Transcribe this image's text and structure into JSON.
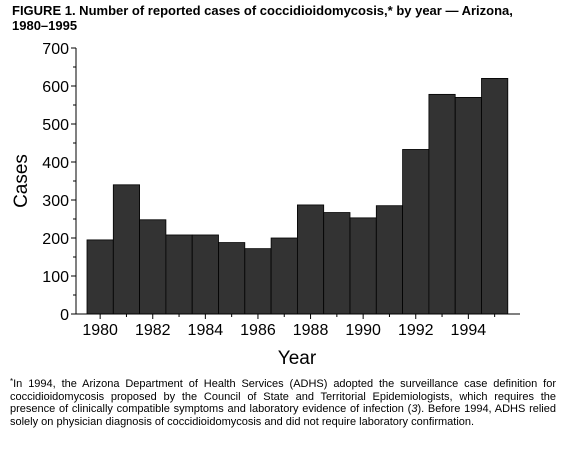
{
  "figure": {
    "title_line1": "FIGURE 1. Number of reported cases of coccidioidomycosis,* by year — Arizona,",
    "title_line2": "1980–1995"
  },
  "chart_data": {
    "type": "bar",
    "title": "",
    "xlabel": "Year",
    "ylabel": "Cases",
    "ylim": [
      0,
      700
    ],
    "yticks": [
      0,
      100,
      200,
      300,
      400,
      500,
      600,
      700
    ],
    "xtick_labels": [
      "1980",
      "1982",
      "1984",
      "1986",
      "1988",
      "1990",
      "1992",
      "1994"
    ],
    "categories": [
      "1980",
      "1981",
      "1982",
      "1983",
      "1984",
      "1985",
      "1986",
      "1987",
      "1988",
      "1989",
      "1990",
      "1991",
      "1992",
      "1993",
      "1994",
      "1995"
    ],
    "values": [
      195,
      340,
      248,
      208,
      208,
      188,
      172,
      200,
      287,
      267,
      253,
      285,
      433,
      578,
      570,
      620
    ],
    "bar_color": "#333333",
    "grid": false
  },
  "footnote": {
    "marker": "*",
    "text_part1": "In 1994, the Arizona Department of Health Services (ADHS) adopted the surveillance case definition for coccidioidomycosis proposed by the Council of State and Territorial Epidemiologists, which requires the presence of clinically compatible symptoms and laboratory evidence of infection (",
    "reference": "3",
    "text_part2": "). Before 1994, ADHS relied solely on physician diagnosis of coccidioidomycosis and did not require laboratory confirmation."
  }
}
